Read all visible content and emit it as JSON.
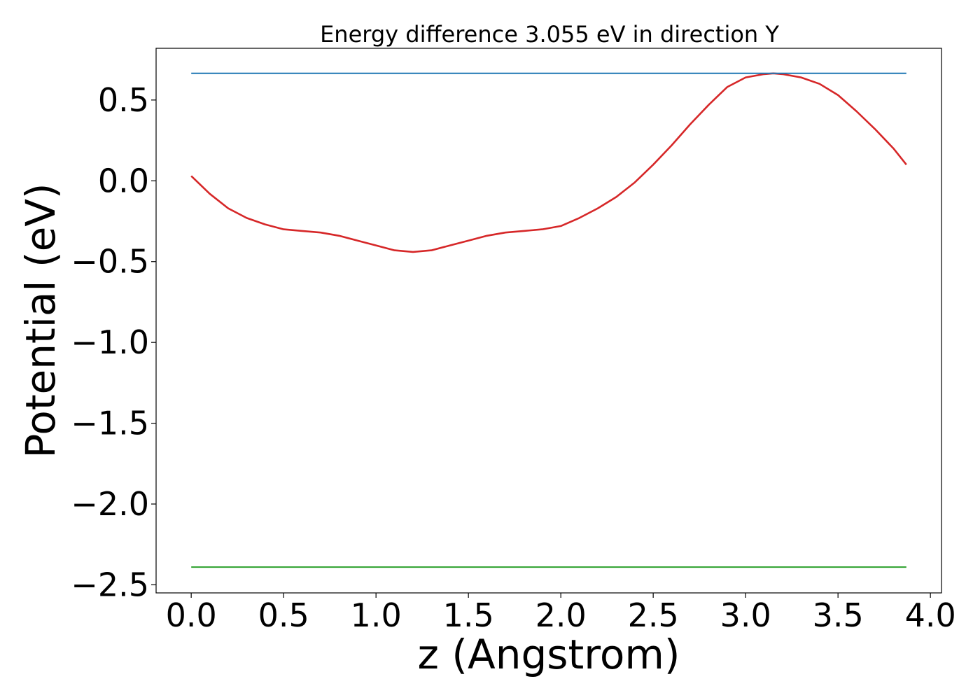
{
  "chart_data": {
    "type": "line",
    "title": "Energy difference 3.055 eV in direction Y",
    "xlabel": "z (Angstrom)",
    "ylabel": "Potential (eV)",
    "xlim": [
      -0.19,
      4.06
    ],
    "ylim": [
      -2.55,
      0.82
    ],
    "xticks": [
      0.0,
      0.5,
      1.0,
      1.5,
      2.0,
      2.5,
      3.0,
      3.5,
      4.0
    ],
    "xtick_labels": [
      "0.0",
      "0.5",
      "1.0",
      "1.5",
      "2.0",
      "2.5",
      "3.0",
      "3.5",
      "4.0"
    ],
    "yticks": [
      0.5,
      0.0,
      -0.5,
      -1.0,
      -1.5,
      -2.0,
      -2.5
    ],
    "ytick_labels": [
      "0.5",
      "0.0",
      "−0.5",
      "−1.0",
      "−1.5",
      "−2.0",
      "−2.5"
    ],
    "grid": false,
    "series": [
      {
        "color": "#d62728",
        "x": [
          0.0,
          0.1,
          0.2,
          0.3,
          0.4,
          0.5,
          0.6,
          0.7,
          0.8,
          0.9,
          1.0,
          1.1,
          1.2,
          1.3,
          1.4,
          1.5,
          1.6,
          1.7,
          1.8,
          1.9,
          2.0,
          2.1,
          2.2,
          2.3,
          2.4,
          2.5,
          2.6,
          2.7,
          2.8,
          2.9,
          3.0,
          3.1,
          3.15,
          3.2,
          3.3,
          3.4,
          3.5,
          3.6,
          3.7,
          3.8,
          3.87
        ],
        "y": [
          0.03,
          -0.08,
          -0.17,
          -0.23,
          -0.27,
          -0.3,
          -0.31,
          -0.32,
          -0.34,
          -0.37,
          -0.4,
          -0.43,
          -0.44,
          -0.43,
          -0.4,
          -0.37,
          -0.34,
          -0.32,
          -0.31,
          -0.3,
          -0.28,
          -0.23,
          -0.17,
          -0.1,
          -0.01,
          0.1,
          0.22,
          0.35,
          0.47,
          0.58,
          0.64,
          0.66,
          0.665,
          0.66,
          0.64,
          0.6,
          0.53,
          0.43,
          0.32,
          0.2,
          0.1
        ]
      },
      {
        "color": "#1f77b4",
        "x": [
          0.0,
          3.87
        ],
        "y": [
          0.665,
          0.665
        ]
      },
      {
        "color": "#2ca02c",
        "x": [
          0.0,
          3.87
        ],
        "y": [
          -2.39,
          -2.39
        ]
      }
    ]
  }
}
